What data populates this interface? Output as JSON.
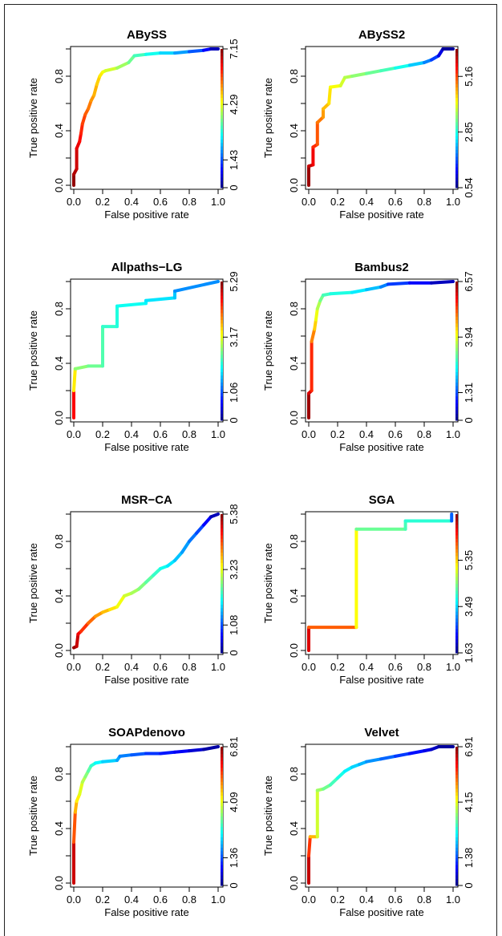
{
  "chart_data": [
    {
      "type": "line",
      "title": "ABySS",
      "xlabel": "False positive rate",
      "ylabel": "True positive rate",
      "xlim": [
        0,
        1
      ],
      "ylim": [
        0,
        1
      ],
      "x_ticks": [
        "0.0",
        "0.2",
        "0.4",
        "0.6",
        "0.8",
        "1.0"
      ],
      "y_ticks": [
        "0.0",
        "0.4",
        "0.8"
      ],
      "colorbar": {
        "ticks": [
          "0",
          "1.43",
          "4.29",
          "7.15"
        ],
        "min": 0,
        "max": 7.15
      },
      "series": [
        {
          "x": [
            0,
            0,
            0.02,
            0.02,
            0.04,
            0.05,
            0.06,
            0.08,
            0.1,
            0.12,
            0.14,
            0.16,
            0.18,
            0.2,
            0.22,
            0.3,
            0.38,
            0.42,
            0.5,
            0.6,
            0.7,
            0.8,
            0.9,
            0.95,
            1.0
          ],
          "y": [
            0,
            0.08,
            0.12,
            0.27,
            0.32,
            0.38,
            0.45,
            0.52,
            0.56,
            0.62,
            0.66,
            0.74,
            0.8,
            0.83,
            0.84,
            0.86,
            0.9,
            0.95,
            0.96,
            0.97,
            0.97,
            0.98,
            0.99,
            1.0,
            1.0
          ],
          "threshold": [
            7.15,
            6.9,
            6.7,
            6.5,
            6.3,
            6.1,
            5.9,
            5.7,
            5.5,
            5.3,
            5.1,
            4.9,
            4.7,
            4.5,
            4.3,
            4.0,
            3.6,
            3.3,
            3.0,
            2.6,
            2.2,
            1.8,
            1.2,
            0.6,
            0.2
          ]
        }
      ]
    },
    {
      "type": "line",
      "title": "ABySS2",
      "xlabel": "False positive rate",
      "ylabel": "True positive rate",
      "xlim": [
        0,
        1
      ],
      "ylim": [
        0,
        1
      ],
      "x_ticks": [
        "0.0",
        "0.2",
        "0.4",
        "0.6",
        "0.8",
        "1.0"
      ],
      "y_ticks": [
        "0.0",
        "0.4",
        "0.8"
      ],
      "colorbar": {
        "ticks": [
          "0.54",
          "2.85",
          "5.16"
        ],
        "min": 0.54,
        "max": 6.3
      },
      "series": [
        {
          "x": [
            0,
            0,
            0.03,
            0.03,
            0.06,
            0.06,
            0.1,
            0.1,
            0.14,
            0.15,
            0.22,
            0.25,
            0.3,
            0.4,
            0.5,
            0.6,
            0.7,
            0.8,
            0.85,
            0.9,
            0.93,
            1.0
          ],
          "y": [
            0,
            0.14,
            0.15,
            0.28,
            0.3,
            0.46,
            0.5,
            0.56,
            0.6,
            0.72,
            0.73,
            0.79,
            0.8,
            0.82,
            0.84,
            0.86,
            0.88,
            0.9,
            0.92,
            0.95,
            1.0,
            1.0
          ],
          "threshold": [
            6.3,
            6.0,
            5.8,
            5.5,
            5.2,
            5.0,
            4.8,
            4.6,
            4.4,
            4.2,
            4.0,
            3.8,
            3.6,
            3.4,
            3.2,
            3.0,
            2.6,
            2.2,
            1.8,
            1.4,
            0.8,
            0.6
          ]
        }
      ]
    },
    {
      "type": "line",
      "title": "Allpaths−LG",
      "xlabel": "False positive rate",
      "ylabel": "True positive rate",
      "xlim": [
        0,
        1
      ],
      "ylim": [
        0,
        1
      ],
      "x_ticks": [
        "0.0",
        "0.2",
        "0.4",
        "0.6",
        "0.8",
        "1.0"
      ],
      "y_ticks": [
        "0.0",
        "0.4",
        "0.8"
      ],
      "colorbar": {
        "ticks": [
          "0",
          "1.06",
          "3.17",
          "5.29"
        ],
        "min": 0,
        "max": 5.29
      },
      "series": [
        {
          "x": [
            0,
            0,
            0.01,
            0.1,
            0.2,
            0.2,
            0.3,
            0.3,
            0.5,
            0.5,
            0.7,
            0.7,
            1.0
          ],
          "y": [
            0,
            0.2,
            0.36,
            0.38,
            0.38,
            0.67,
            0.67,
            0.82,
            0.84,
            0.86,
            0.88,
            0.93,
            1.0
          ],
          "threshold": [
            5.29,
            4.0,
            2.8,
            2.6,
            2.5,
            2.3,
            2.2,
            2.1,
            2.0,
            1.9,
            1.8,
            1.6,
            1.2
          ]
        }
      ]
    },
    {
      "type": "line",
      "title": "Bambus2",
      "xlabel": "False positive rate",
      "ylabel": "True positive rate",
      "xlim": [
        0,
        1
      ],
      "ylim": [
        0,
        1
      ],
      "x_ticks": [
        "0.0",
        "0.2",
        "0.4",
        "0.6",
        "0.8",
        "1.0"
      ],
      "y_ticks": [
        "0.0",
        "0.4",
        "0.8"
      ],
      "colorbar": {
        "ticks": [
          "0",
          "1.31",
          "3.94",
          "6.57"
        ],
        "min": 0,
        "max": 6.57
      },
      "series": [
        {
          "x": [
            0,
            0,
            0.02,
            0.02,
            0.04,
            0.05,
            0.06,
            0.08,
            0.1,
            0.15,
            0.3,
            0.4,
            0.5,
            0.55,
            0.7,
            0.85,
            1.0
          ],
          "y": [
            0,
            0.18,
            0.2,
            0.56,
            0.65,
            0.72,
            0.8,
            0.86,
            0.9,
            0.91,
            0.92,
            0.94,
            0.96,
            0.98,
            0.99,
            0.99,
            1.0
          ],
          "threshold": [
            6.57,
            6.2,
            5.8,
            5.2,
            4.6,
            4.2,
            3.8,
            3.4,
            3.0,
            2.8,
            2.5,
            2.2,
            1.9,
            1.4,
            1.0,
            0.6,
            0.2
          ]
        }
      ]
    },
    {
      "type": "line",
      "title": "MSR−CA",
      "xlabel": "False positive rate",
      "ylabel": "True positive rate",
      "xlim": [
        0,
        1
      ],
      "ylim": [
        0,
        1
      ],
      "x_ticks": [
        "0.0",
        "0.2",
        "0.4",
        "0.6",
        "0.8",
        "1.0"
      ],
      "y_ticks": [
        "0.0",
        "0.4",
        "0.8"
      ],
      "colorbar": {
        "ticks": [
          "0",
          "1.08",
          "3.23",
          "5.38"
        ],
        "min": 0,
        "max": 5.38
      },
      "series": [
        {
          "x": [
            0,
            0.02,
            0.03,
            0.05,
            0.1,
            0.15,
            0.2,
            0.25,
            0.3,
            0.35,
            0.4,
            0.45,
            0.5,
            0.55,
            0.6,
            0.65,
            0.7,
            0.75,
            0.8,
            0.85,
            0.9,
            0.95,
            1.0
          ],
          "y": [
            0.02,
            0.03,
            0.12,
            0.14,
            0.2,
            0.25,
            0.28,
            0.3,
            0.32,
            0.4,
            0.42,
            0.45,
            0.5,
            0.55,
            0.6,
            0.62,
            0.66,
            0.72,
            0.8,
            0.86,
            0.92,
            0.98,
            1.0
          ],
          "threshold": [
            5.38,
            5.1,
            4.9,
            4.6,
            4.3,
            4.0,
            3.8,
            3.6,
            3.4,
            3.2,
            3.0,
            2.8,
            2.6,
            2.4,
            2.2,
            2.0,
            1.8,
            1.6,
            1.4,
            1.2,
            0.9,
            0.5,
            0.1
          ]
        }
      ]
    },
    {
      "type": "line",
      "title": "SGA",
      "xlabel": "False positive rate",
      "ylabel": "True positive rate",
      "xlim": [
        0,
        1
      ],
      "ylim": [
        0,
        1
      ],
      "x_ticks": [
        "0.0",
        "0.2",
        "0.4",
        "0.6",
        "0.8",
        "1.0"
      ],
      "y_ticks": [
        "0.0",
        "0.4",
        "0.8"
      ],
      "colorbar": {
        "ticks": [
          "1.63",
          "3.49",
          "5.35"
        ],
        "min": 1.63,
        "max": 7.2
      },
      "series": [
        {
          "x": [
            0,
            0,
            0.33,
            0.33,
            0.67,
            0.67,
            0.99,
            0.99
          ],
          "y": [
            0,
            0.17,
            0.17,
            0.89,
            0.89,
            0.95,
            0.95,
            1.0
          ],
          "threshold": [
            7.2,
            6.2,
            5.8,
            4.4,
            4.2,
            4.0,
            3.9,
            1.8
          ]
        }
      ]
    },
    {
      "type": "line",
      "title": "SOAPdenovo",
      "xlabel": "False positive rate",
      "ylabel": "True positive rate",
      "xlim": [
        0,
        1
      ],
      "ylim": [
        0,
        1
      ],
      "x_ticks": [
        "0.0",
        "0.2",
        "0.4",
        "0.6",
        "0.8",
        "1.0"
      ],
      "y_ticks": [
        "0.0",
        "0.4",
        "0.8"
      ],
      "colorbar": {
        "ticks": [
          "0",
          "1.36",
          "4.09",
          "6.81"
        ],
        "min": 0,
        "max": 6.81
      },
      "series": [
        {
          "x": [
            0,
            0,
            0.01,
            0.02,
            0.04,
            0.06,
            0.08,
            0.1,
            0.12,
            0.15,
            0.2,
            0.3,
            0.32,
            0.4,
            0.5,
            0.6,
            0.7,
            0.8,
            0.9,
            1.0
          ],
          "y": [
            0,
            0.3,
            0.52,
            0.6,
            0.65,
            0.74,
            0.78,
            0.82,
            0.86,
            0.88,
            0.89,
            0.9,
            0.93,
            0.94,
            0.95,
            0.95,
            0.96,
            0.97,
            0.98,
            1.0
          ],
          "threshold": [
            6.81,
            5.8,
            5.0,
            4.5,
            4.2,
            3.9,
            3.6,
            3.3,
            3.0,
            2.7,
            2.4,
            2.1,
            1.8,
            1.6,
            1.3,
            1.1,
            0.9,
            0.7,
            0.4,
            0.1
          ]
        }
      ]
    },
    {
      "type": "line",
      "title": "Velvet",
      "xlabel": "False positive rate",
      "ylabel": "True positive rate",
      "xlim": [
        0,
        1
      ],
      "ylim": [
        0,
        1
      ],
      "x_ticks": [
        "0.0",
        "0.2",
        "0.4",
        "0.6",
        "0.8",
        "1.0"
      ],
      "y_ticks": [
        "0.0",
        "0.4",
        "0.8"
      ],
      "colorbar": {
        "ticks": [
          "0",
          "1.38",
          "4.15",
          "6.91"
        ],
        "min": 0,
        "max": 6.91
      },
      "series": [
        {
          "x": [
            0,
            0,
            0.01,
            0.06,
            0.06,
            0.1,
            0.15,
            0.2,
            0.25,
            0.3,
            0.35,
            0.4,
            0.5,
            0.6,
            0.7,
            0.8,
            0.85,
            0.9,
            1.0
          ],
          "y": [
            0,
            0.2,
            0.34,
            0.34,
            0.68,
            0.69,
            0.72,
            0.77,
            0.82,
            0.85,
            0.87,
            0.89,
            0.91,
            0.93,
            0.95,
            0.97,
            0.98,
            1.0,
            1.0
          ],
          "threshold": [
            6.91,
            6.0,
            5.4,
            4.2,
            3.8,
            3.5,
            3.2,
            2.9,
            2.6,
            2.4,
            2.2,
            2.0,
            1.7,
            1.4,
            1.1,
            0.8,
            0.6,
            0.3,
            0.1
          ]
        }
      ]
    }
  ]
}
